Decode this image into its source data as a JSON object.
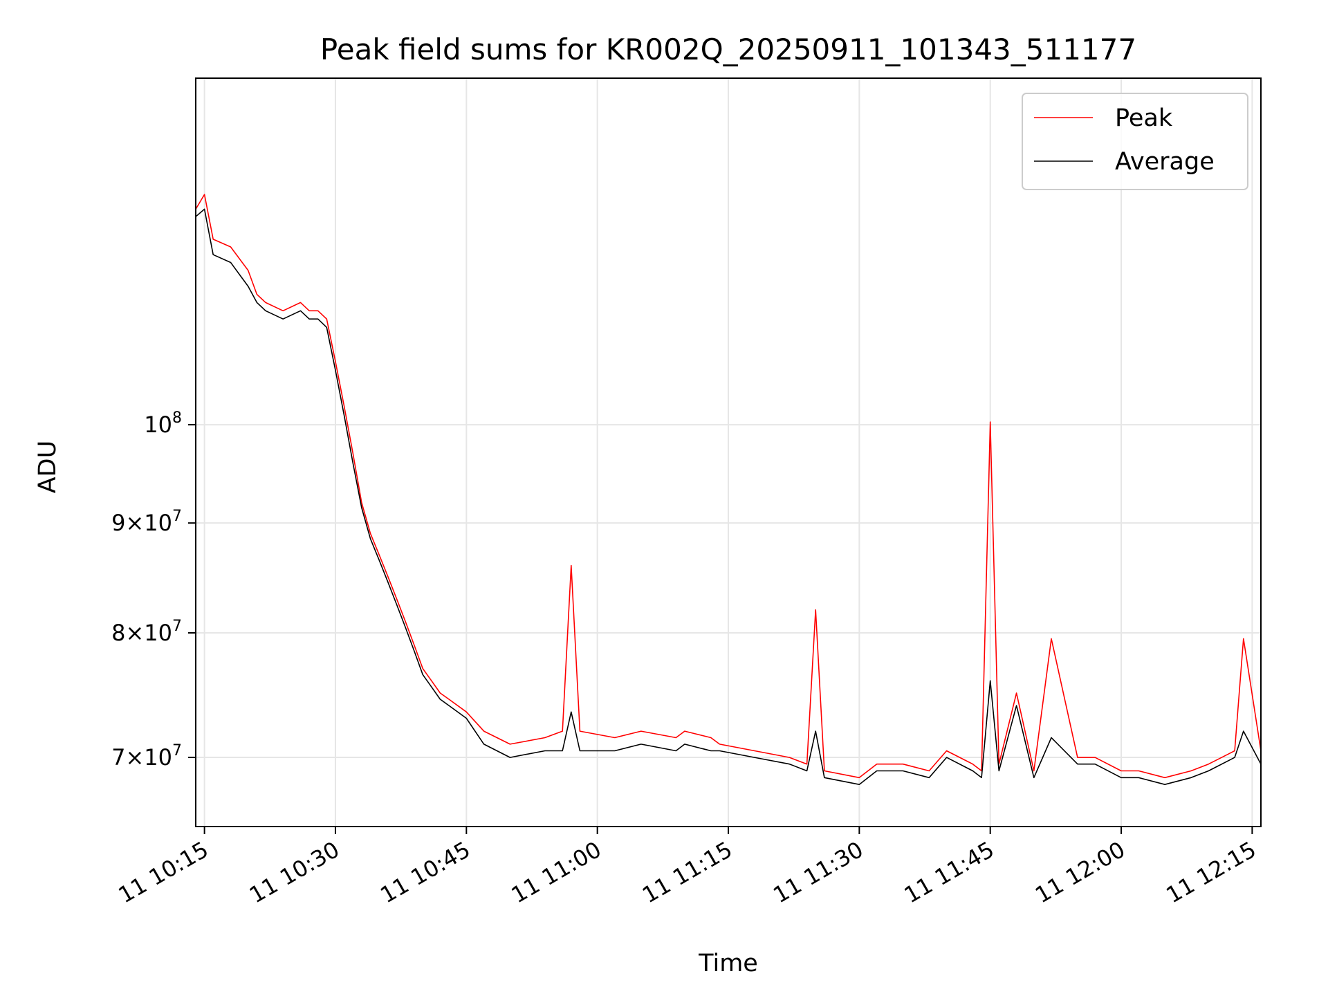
{
  "chart_data": {
    "type": "line",
    "title": "Peak field sums for KR002Q_20250911_101343_511177",
    "xlabel": "Time",
    "ylabel": "ADU",
    "y_scale": "log",
    "grid": true,
    "legend_position": "top-right",
    "xlim": [
      "11 10:14",
      "11 12:16"
    ],
    "ylim": [
      65000000,
      145000000
    ],
    "x_ticks": [
      {
        "value": "11 10:15",
        "label": "11 10:15"
      },
      {
        "value": "11 10:30",
        "label": "11 10:30"
      },
      {
        "value": "11 10:45",
        "label": "11 10:45"
      },
      {
        "value": "11 11:00",
        "label": "11 11:00"
      },
      {
        "value": "11 11:15",
        "label": "11 11:15"
      },
      {
        "value": "11 11:30",
        "label": "11 11:30"
      },
      {
        "value": "11 11:45",
        "label": "11 11:45"
      },
      {
        "value": "11 12:00",
        "label": "11 12:00"
      },
      {
        "value": "11 12:15",
        "label": "11 12:15"
      }
    ],
    "y_ticks": [
      {
        "value": 70000000,
        "mantissa": "7",
        "base": "10",
        "exponent": "7"
      },
      {
        "value": 80000000,
        "mantissa": "8",
        "base": "10",
        "exponent": "7"
      },
      {
        "value": 90000000,
        "mantissa": "9",
        "base": "10",
        "exponent": "7"
      },
      {
        "value": 100000000,
        "mantissa": "",
        "base": "10",
        "exponent": "8"
      }
    ],
    "series": [
      {
        "name": "Peak",
        "color": "#ff0000",
        "x": [
          "11 10:14",
          "11 10:15",
          "11 10:16",
          "11 10:18",
          "11 10:20",
          "11 10:21",
          "11 10:22",
          "11 10:24",
          "11 10:26",
          "11 10:27",
          "11 10:28",
          "11 10:29",
          "11 10:30",
          "11 10:31",
          "11 10:32",
          "11 10:33",
          "11 10:34",
          "11 10:35",
          "11 10:36",
          "11 10:37",
          "11 10:38",
          "11 10:39",
          "11 10:40",
          "11 10:41",
          "11 10:42",
          "11 10:43",
          "11 10:45",
          "11 10:47",
          "11 10:50",
          "11 10:54",
          "11 10:56",
          "11 10:57",
          "11 10:58",
          "11 11:02",
          "11 11:05",
          "11 11:09",
          "11 11:10",
          "11 11:13",
          "11 11:14",
          "11 11:18",
          "11 11:22",
          "11 11:24",
          "11 11:25",
          "11 11:26",
          "11 11:30",
          "11 11:32",
          "11 11:35",
          "11 11:38",
          "11 11:40",
          "11 11:43",
          "11 11:44",
          "11 11:45",
          "11 11:46",
          "11 11:48",
          "11 11:50",
          "11 11:52",
          "11 11:55",
          "11 11:57",
          "11 12:00",
          "11 12:02",
          "11 12:05",
          "11 12:08",
          "11 12:10",
          "11 12:13",
          "11 12:14",
          "11 12:16"
        ],
        "values": [
          126000000,
          128000000,
          122000000,
          121000000,
          118000000,
          115000000,
          114000000,
          113000000,
          114000000,
          113000000,
          113000000,
          112000000,
          107000000,
          102000000,
          97000000,
          92000000,
          89000000,
          87000000,
          85000000,
          83000000,
          81000000,
          79000000,
          77000000,
          76000000,
          75000000,
          74500000,
          73500000,
          72000000,
          71000000,
          71500000,
          72000000,
          86000000,
          72000000,
          71500000,
          72000000,
          71500000,
          72000000,
          71500000,
          71000000,
          70500000,
          70000000,
          69500000,
          82000000,
          69000000,
          68500000,
          69500000,
          69500000,
          69000000,
          70500000,
          69500000,
          69000000,
          100300000,
          69500000,
          75000000,
          69000000,
          79500000,
          70000000,
          70000000,
          69000000,
          69000000,
          68500000,
          69000000,
          69500000,
          70500000,
          79500000,
          70500000
        ]
      },
      {
        "name": "Average",
        "color": "#000000",
        "x": [
          "11 10:14",
          "11 10:15",
          "11 10:16",
          "11 10:18",
          "11 10:20",
          "11 10:21",
          "11 10:22",
          "11 10:24",
          "11 10:26",
          "11 10:27",
          "11 10:28",
          "11 10:29",
          "11 10:30",
          "11 10:31",
          "11 10:32",
          "11 10:33",
          "11 10:34",
          "11 10:35",
          "11 10:36",
          "11 10:37",
          "11 10:38",
          "11 10:39",
          "11 10:40",
          "11 10:41",
          "11 10:42",
          "11 10:43",
          "11 10:45",
          "11 10:47",
          "11 10:50",
          "11 10:54",
          "11 10:56",
          "11 10:57",
          "11 10:58",
          "11 11:02",
          "11 11:05",
          "11 11:09",
          "11 11:10",
          "11 11:13",
          "11 11:14",
          "11 11:18",
          "11 11:22",
          "11 11:24",
          "11 11:25",
          "11 11:26",
          "11 11:30",
          "11 11:32",
          "11 11:35",
          "11 11:38",
          "11 11:40",
          "11 11:43",
          "11 11:44",
          "11 11:45",
          "11 11:46",
          "11 11:48",
          "11 11:50",
          "11 11:52",
          "11 11:55",
          "11 11:57",
          "11 12:00",
          "11 12:02",
          "11 12:05",
          "11 12:08",
          "11 12:10",
          "11 12:13",
          "11 12:14",
          "11 12:16"
        ],
        "values": [
          125000000,
          126000000,
          120000000,
          119000000,
          116000000,
          114000000,
          113000000,
          112000000,
          113000000,
          112000000,
          112000000,
          111000000,
          106000000,
          101000000,
          96000000,
          91500000,
          88500000,
          86500000,
          84500000,
          82500000,
          80500000,
          78500000,
          76500000,
          75500000,
          74500000,
          74000000,
          73000000,
          71000000,
          70000000,
          70500000,
          70500000,
          73500000,
          70500000,
          70500000,
          71000000,
          70500000,
          71000000,
          70500000,
          70500000,
          70000000,
          69500000,
          69000000,
          72000000,
          68500000,
          68000000,
          69000000,
          69000000,
          68500000,
          70000000,
          69000000,
          68500000,
          76000000,
          69000000,
          74000000,
          68500000,
          71500000,
          69500000,
          69500000,
          68500000,
          68500000,
          68000000,
          68500000,
          69000000,
          70000000,
          72000000,
          69500000
        ]
      }
    ]
  }
}
